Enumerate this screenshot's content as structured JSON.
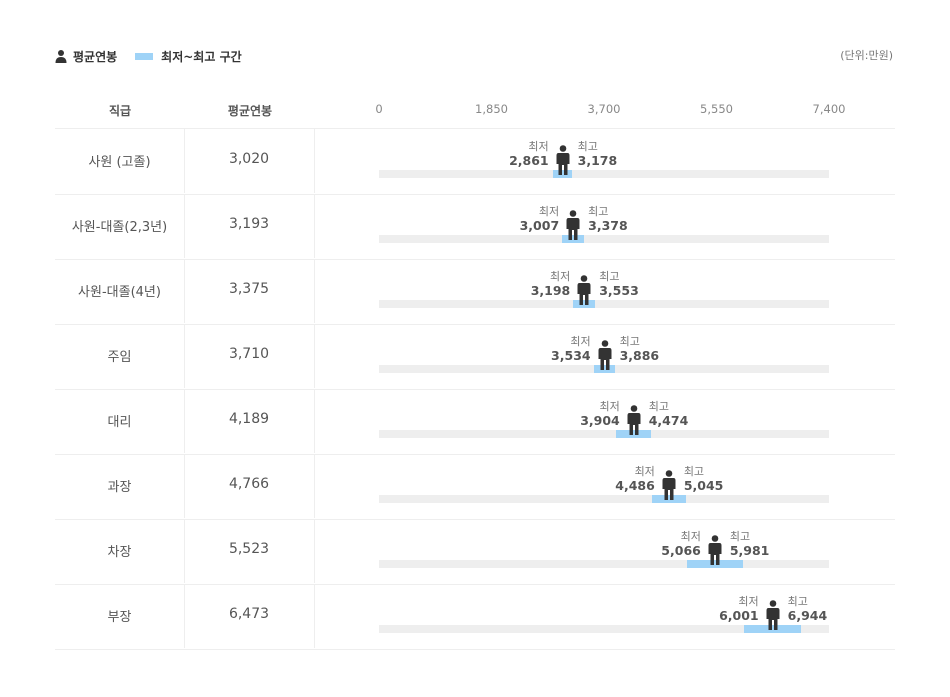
{
  "legend": {
    "avg_label": "평균연봉",
    "range_label": "최저~최고 구간"
  },
  "unit": "(단위:만원)",
  "header": {
    "col_rank": "직급",
    "col_avg": "평균연봉"
  },
  "labels": {
    "min": "최저",
    "max": "최고"
  },
  "colors": {
    "range": "#9fd3f7",
    "track": "#eeeeee",
    "person": "#333333"
  },
  "icons": {
    "person": "person-icon"
  },
  "chart_data": {
    "type": "range-bar",
    "x_ticks": [
      0,
      1850,
      3700,
      5550,
      7400
    ],
    "x_tick_labels": [
      "0",
      "1,850",
      "3,700",
      "5,550",
      "7,400"
    ],
    "xlim": [
      0,
      7400
    ],
    "rows": [
      {
        "rank": "사원 (고졸)",
        "avg": 3020,
        "avg_label": "3,020",
        "min": 2861,
        "min_label": "2,861",
        "max": 3178,
        "max_label": "3,178"
      },
      {
        "rank": "사원-대졸(2,3년)",
        "avg": 3193,
        "avg_label": "3,193",
        "min": 3007,
        "min_label": "3,007",
        "max": 3378,
        "max_label": "3,378"
      },
      {
        "rank": "사원-대졸(4년)",
        "avg": 3375,
        "avg_label": "3,375",
        "min": 3198,
        "min_label": "3,198",
        "max": 3553,
        "max_label": "3,553"
      },
      {
        "rank": "주임",
        "avg": 3710,
        "avg_label": "3,710",
        "min": 3534,
        "min_label": "3,534",
        "max": 3886,
        "max_label": "3,886"
      },
      {
        "rank": "대리",
        "avg": 4189,
        "avg_label": "4,189",
        "min": 3904,
        "min_label": "3,904",
        "max": 4474,
        "max_label": "4,474"
      },
      {
        "rank": "과장",
        "avg": 4766,
        "avg_label": "4,766",
        "min": 4486,
        "min_label": "4,486",
        "max": 5045,
        "max_label": "5,045"
      },
      {
        "rank": "차장",
        "avg": 5523,
        "avg_label": "5,523",
        "min": 5066,
        "min_label": "5,066",
        "max": 5981,
        "max_label": "5,981"
      },
      {
        "rank": "부장",
        "avg": 6473,
        "avg_label": "6,473",
        "min": 6001,
        "min_label": "6,001",
        "max": 6944,
        "max_label": "6,944"
      }
    ]
  }
}
